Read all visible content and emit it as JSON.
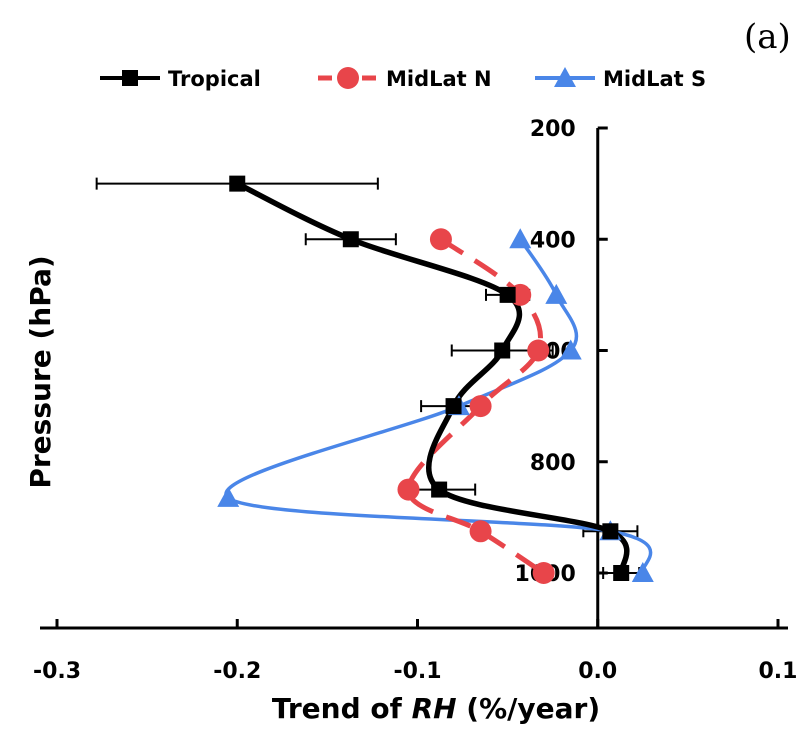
{
  "chart_data": {
    "type": "line",
    "panel_label": "(a)",
    "xlabel_parts": [
      "Trend of ",
      "RH",
      " (%/year)"
    ],
    "ylabel": "Pressure (hPa)",
    "xlim": [
      -0.3,
      0.1
    ],
    "ylim": [
      1100,
      200
    ],
    "x_ticks": [
      -0.3,
      -0.2,
      -0.1,
      0.0,
      0.1
    ],
    "x_tick_labels": [
      "-0.3",
      "-0.2",
      "-0.1",
      "0.0",
      "0.1"
    ],
    "y_ticks": [
      200,
      400,
      600,
      800,
      1000
    ],
    "y_tick_labels": [
      "200",
      "400",
      "600",
      "800",
      "1000"
    ],
    "legend_position": "top",
    "series": [
      {
        "name": "Tropical",
        "color": "#000000",
        "marker": "square",
        "line": "solid",
        "points": [
          {
            "x": -0.2,
            "y": 300,
            "xerr": 0.078
          },
          {
            "x": -0.137,
            "y": 400,
            "xerr": 0.025
          },
          {
            "x": -0.05,
            "y": 500,
            "xerr": 0.012
          },
          {
            "x": -0.053,
            "y": 600,
            "xerr": 0.028
          },
          {
            "x": -0.08,
            "y": 700,
            "xerr": 0.018
          },
          {
            "x": -0.088,
            "y": 850,
            "xerr": 0.02
          },
          {
            "x": 0.007,
            "y": 925,
            "xerr": 0.015
          },
          {
            "x": 0.013,
            "y": 1000,
            "xerr": 0.01
          }
        ]
      },
      {
        "name": "MidLat N",
        "color": "#e8454a",
        "marker": "circle",
        "line": "dashed",
        "points": [
          {
            "x": -0.087,
            "y": 400
          },
          {
            "x": -0.043,
            "y": 500
          },
          {
            "x": -0.033,
            "y": 600
          },
          {
            "x": -0.065,
            "y": 700
          },
          {
            "x": -0.105,
            "y": 850
          },
          {
            "x": -0.065,
            "y": 925
          },
          {
            "x": -0.03,
            "y": 1000
          }
        ]
      },
      {
        "name": "MidLat S",
        "color": "#4a86e8",
        "marker": "triangle",
        "line": "solid",
        "points": [
          {
            "x": -0.043,
            "y": 400
          },
          {
            "x": -0.023,
            "y": 500
          },
          {
            "x": -0.015,
            "y": 600
          },
          {
            "x": -0.077,
            "y": 700
          },
          {
            "x": -0.205,
            "y": 865
          },
          {
            "x": 0.007,
            "y": 925
          },
          {
            "x": 0.025,
            "y": 1000
          }
        ]
      }
    ]
  }
}
